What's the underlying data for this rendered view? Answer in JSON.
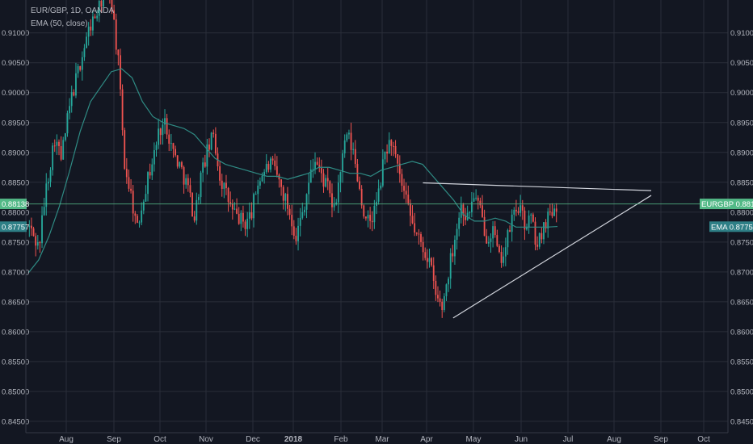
{
  "chart_data": {
    "type": "candlestick",
    "title": "EUR/GBP, 1D, OANDA",
    "indicator_label": "EMA (50, close)",
    "symbol_tag": "EURGBP",
    "last_price": 0.88138,
    "ema_value": 0.87757,
    "price_tag_text": "0.88138",
    "ema_tag_text": "0.87757",
    "ylim": [
      0.8435,
      0.9155
    ],
    "y_ticks": [
      "0.84500",
      "0.85000",
      "0.85500",
      "0.86000",
      "0.86500",
      "0.87000",
      "0.87500",
      "0.88000",
      "0.88500",
      "0.89000",
      "0.89500",
      "0.90000",
      "0.90500",
      "0.91000"
    ],
    "x_ticks": [
      "Aug",
      "Sep",
      "Oct",
      "Nov",
      "Dec",
      "2018",
      "Feb",
      "Mar",
      "Apr",
      "May",
      "Jun",
      "Jul",
      "Aug",
      "Sep",
      "Oct"
    ],
    "grid": true,
    "colors": {
      "background": "#131722",
      "grid": "#2a2e39",
      "up": "#26a69a",
      "down": "#ef5350",
      "ema": "#2f8b84",
      "trendline": "#d1d4dc",
      "price_tag": "#53b987",
      "ema_tag": "#2e7f86",
      "axis_text": "#b2b5be"
    },
    "ema_series": [
      0.8698,
      0.872,
      0.876,
      0.881,
      0.887,
      0.8935,
      0.8985,
      0.901,
      0.9035,
      0.904,
      0.9025,
      0.8985,
      0.896,
      0.895,
      0.8945,
      0.894,
      0.893,
      0.891,
      0.889,
      0.888,
      0.8875,
      0.887,
      0.8865,
      0.886,
      0.886,
      0.8855,
      0.886,
      0.8865,
      0.8875,
      0.8875,
      0.887,
      0.8865,
      0.8865,
      0.886,
      0.887,
      0.8875,
      0.888,
      0.8885,
      0.888,
      0.886,
      0.884,
      0.882,
      0.8795,
      0.8785,
      0.8785,
      0.879,
      0.8785,
      0.8775,
      0.8775,
      0.8775,
      0.8775,
      0.8776
    ],
    "trendlines": [
      {
        "from_date": "2018-03-28",
        "from_price": 0.8849,
        "to_date": "2018-08-26",
        "to_price": 0.8836
      },
      {
        "from_date": "2018-04-17",
        "from_price": 0.8623,
        "to_date": "2018-08-26",
        "to_price": 0.8828
      }
    ]
  }
}
